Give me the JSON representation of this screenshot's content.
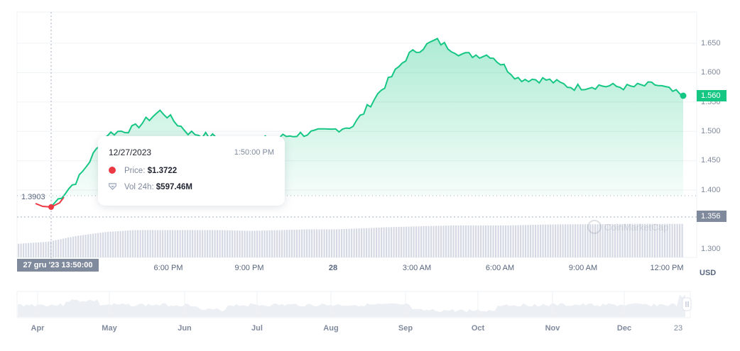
{
  "chart_data": {
    "type": "area",
    "title": "",
    "xlabel": "",
    "ylabel": "USD",
    "currency": "USD",
    "y_ticks": [
      "1.650",
      "1.600",
      "1.550",
      "1.500",
      "1.450",
      "1.400",
      "1.300"
    ],
    "ylim": [
      1.29,
      1.67
    ],
    "x_ticks": [
      "6:00 PM",
      "9:00 PM",
      "28",
      "3:00 AM",
      "6:00 AM",
      "9:00 AM",
      "12:00 PM"
    ],
    "grid": true,
    "series": [
      {
        "name": "Price",
        "color": "#16c784",
        "x": [
          "27 Dec 13:50",
          "15:00",
          "16:00",
          "17:00",
          "18:00",
          "19:00",
          "20:00",
          "21:00",
          "22:00",
          "23:00",
          "28 Dec 00:00",
          "01:00",
          "02:00",
          "03:00",
          "04:00",
          "05:00",
          "06:00",
          "07:00",
          "08:00",
          "09:00",
          "10:00",
          "11:00",
          "12:00",
          "12:50"
        ],
        "values": [
          1.3722,
          1.42,
          1.495,
          1.505,
          1.535,
          1.498,
          1.49,
          1.482,
          1.488,
          1.495,
          1.5,
          1.51,
          1.57,
          1.63,
          1.655,
          1.63,
          1.63,
          1.59,
          1.588,
          1.575,
          1.578,
          1.575,
          1.58,
          1.56
        ]
      },
      {
        "name": "Vol 24h",
        "color": "#cfd6e4",
        "unit": "USD",
        "values_relative": [
          0.35,
          0.4,
          0.55,
          0.65,
          0.7,
          0.7,
          0.7,
          0.7,
          0.68,
          0.7,
          0.72,
          0.72,
          0.75,
          0.78,
          0.8,
          0.82,
          0.82,
          0.82,
          0.84,
          0.85,
          0.85,
          0.86,
          0.86,
          0.86
        ]
      }
    ],
    "navigator": {
      "x_ticks": [
        "Apr",
        "May",
        "Jun",
        "Jul",
        "Aug",
        "Sep",
        "Oct",
        "Nov",
        "Dec",
        "23"
      ]
    },
    "current_price_label": "1.560",
    "crosshair_price_label": "1.356",
    "crosshair_y_label": "1.3903",
    "crosshair_x_label": "27 gru '23   13:50:00",
    "tooltip": {
      "date": "12/27/2023",
      "time": "1:50:00 PM",
      "price_label": "Price:",
      "price_value": "$1.3722",
      "vol_label": "Vol 24h:",
      "vol_value": "$597.46M"
    },
    "watermark": "CoinMarketCap",
    "colors": {
      "up": "#16c784",
      "down": "#ea3943",
      "axis_badge": "#808a9d"
    }
  }
}
